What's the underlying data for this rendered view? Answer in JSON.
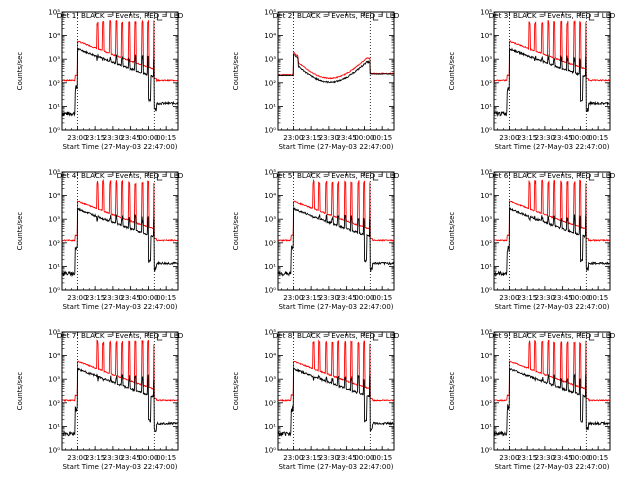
{
  "figure": {
    "colors": {
      "events": "#000000",
      "lld": "#ff0000",
      "axis": "#000000",
      "background": "#ffffff"
    },
    "ylabel": "Counts/sec",
    "xlabel": "Start Time (27-May-03 22:47:00)"
  },
  "chart_data": [
    {
      "type": "line",
      "title": "Det 1: BLACK = Events, RED = LLD",
      "ylabel": "Counts/sec",
      "xlabel": "Start Time (27-May-03 22:47:00)",
      "yscale": "log",
      "ylim": [
        1,
        100000
      ],
      "yticks": [
        "10⁰",
        "10¹",
        "10²",
        "10³",
        "10⁴",
        "10⁵"
      ],
      "xticks": [
        "23:00",
        "23:15",
        "23:30",
        "23:45",
        "00:00",
        "00:15"
      ],
      "xlim": [
        "22:47",
        "00:25"
      ],
      "markers": [
        "23:00",
        "00:05"
      ],
      "profile": "burst",
      "series": [
        {
          "name": "BLACK = Events",
          "color": "#000000"
        },
        {
          "name": "RED = LLD",
          "color": "#ff0000"
        }
      ]
    },
    {
      "type": "line",
      "title": "Det 2: BLACK = Events, RED = LLD",
      "ylabel": "Counts/sec",
      "xlabel": "Start Time (27-May-03 22:47:00)",
      "yscale": "log",
      "ylim": [
        1,
        100000
      ],
      "yticks": [
        "10⁰",
        "10¹",
        "10²",
        "10³",
        "10⁴",
        "10⁵"
      ],
      "xticks": [
        "23:00",
        "23:15",
        "23:30",
        "23:45",
        "00:00",
        "00:15"
      ],
      "xlim": [
        "22:47",
        "00:25"
      ],
      "markers": [
        "23:00",
        "00:05"
      ],
      "profile": "flat",
      "series": [
        {
          "name": "BLACK = Events",
          "color": "#000000"
        },
        {
          "name": "RED = LLD",
          "color": "#ff0000"
        }
      ]
    },
    {
      "type": "line",
      "title": "Det 3: BLACK = Events, RED = LLD",
      "ylabel": "Counts/sec",
      "xlabel": "Start Time (27-May-03 22:47:00)",
      "yscale": "log",
      "ylim": [
        1,
        100000
      ],
      "yticks": [
        "10⁰",
        "10¹",
        "10²",
        "10³",
        "10⁴",
        "10⁵"
      ],
      "xticks": [
        "23:00",
        "23:15",
        "23:30",
        "23:45",
        "00:00",
        "00:15"
      ],
      "xlim": [
        "22:47",
        "00:25"
      ],
      "markers": [
        "23:00",
        "00:05"
      ],
      "profile": "burst",
      "series": [
        {
          "name": "BLACK = Events",
          "color": "#000000"
        },
        {
          "name": "RED = LLD",
          "color": "#ff0000"
        }
      ]
    },
    {
      "type": "line",
      "title": "Det 4: BLACK = Events, RED = LLD",
      "ylabel": "Counts/sec",
      "xlabel": "Start Time (27-May-03 22:47:00)",
      "yscale": "log",
      "ylim": [
        1,
        100000
      ],
      "yticks": [
        "10⁰",
        "10¹",
        "10²",
        "10³",
        "10⁴",
        "10⁵"
      ],
      "xticks": [
        "23:00",
        "23:15",
        "23:30",
        "23:45",
        "00:00",
        "00:15"
      ],
      "xlim": [
        "22:47",
        "00:25"
      ],
      "markers": [
        "23:00",
        "00:05"
      ],
      "profile": "burst",
      "series": [
        {
          "name": "BLACK = Events",
          "color": "#000000"
        },
        {
          "name": "RED = LLD",
          "color": "#ff0000"
        }
      ]
    },
    {
      "type": "line",
      "title": "Det 5: BLACK = Events, RED = LLD",
      "ylabel": "Counts/sec",
      "xlabel": "Start Time (27-May-03 22:47:00)",
      "yscale": "log",
      "ylim": [
        1,
        100000
      ],
      "yticks": [
        "10⁰",
        "10¹",
        "10²",
        "10³",
        "10⁴",
        "10⁵"
      ],
      "xticks": [
        "23:00",
        "23:15",
        "23:30",
        "23:45",
        "00:00",
        "00:15"
      ],
      "xlim": [
        "22:47",
        "00:25"
      ],
      "markers": [
        "23:00",
        "00:05"
      ],
      "profile": "burst",
      "series": [
        {
          "name": "BLACK = Events",
          "color": "#000000"
        },
        {
          "name": "RED = LLD",
          "color": "#ff0000"
        }
      ]
    },
    {
      "type": "line",
      "title": "Det 6: BLACK = Events, RED = LLD",
      "ylabel": "Counts/sec",
      "xlabel": "Start Time (27-May-03 22:47:00)",
      "yscale": "log",
      "ylim": [
        1,
        100000
      ],
      "yticks": [
        "10⁰",
        "10¹",
        "10²",
        "10³",
        "10⁴",
        "10⁵"
      ],
      "xticks": [
        "23:00",
        "23:15",
        "23:30",
        "23:45",
        "00:00",
        "00:15"
      ],
      "xlim": [
        "22:47",
        "00:25"
      ],
      "markers": [
        "23:00",
        "00:05"
      ],
      "profile": "burst",
      "series": [
        {
          "name": "BLACK = Events",
          "color": "#000000"
        },
        {
          "name": "RED = LLD",
          "color": "#ff0000"
        }
      ]
    },
    {
      "type": "line",
      "title": "Det 7: BLACK = Events, RED = LLD",
      "ylabel": "Counts/sec",
      "xlabel": "Start Time (27-May-03 22:47:00)",
      "yscale": "log",
      "ylim": [
        1,
        100000
      ],
      "yticks": [
        "10⁰",
        "10¹",
        "10²",
        "10³",
        "10⁴",
        "10⁵"
      ],
      "xticks": [
        "23:00",
        "23:15",
        "23:30",
        "23:45",
        "00:00",
        "00:15"
      ],
      "xlim": [
        "22:47",
        "00:25"
      ],
      "markers": [
        "23:00",
        "00:05"
      ],
      "profile": "burst",
      "series": [
        {
          "name": "BLACK = Events",
          "color": "#000000"
        },
        {
          "name": "RED = LLD",
          "color": "#ff0000"
        }
      ]
    },
    {
      "type": "line",
      "title": "Det 8: BLACK = Events, RED = LLD",
      "ylabel": "Counts/sec",
      "xlabel": "Start Time (27-May-03 22:47:00)",
      "yscale": "log",
      "ylim": [
        1,
        100000
      ],
      "yticks": [
        "10⁰",
        "10¹",
        "10²",
        "10³",
        "10⁴",
        "10⁵"
      ],
      "xticks": [
        "23:00",
        "23:15",
        "23:30",
        "23:45",
        "00:00",
        "00:15"
      ],
      "xlim": [
        "22:47",
        "00:25"
      ],
      "markers": [
        "23:00",
        "00:05"
      ],
      "profile": "burst",
      "series": [
        {
          "name": "BLACK = Events",
          "color": "#000000"
        },
        {
          "name": "RED = LLD",
          "color": "#ff0000"
        }
      ]
    },
    {
      "type": "line",
      "title": "Det 9: BLACK = Events, RED = LLD",
      "ylabel": "Counts/sec",
      "xlabel": "Start Time (27-May-03 22:47:00)",
      "yscale": "log",
      "ylim": [
        1,
        100000
      ],
      "yticks": [
        "10⁰",
        "10¹",
        "10²",
        "10³",
        "10⁴",
        "10⁵"
      ],
      "xticks": [
        "23:00",
        "23:15",
        "23:30",
        "23:45",
        "00:00",
        "00:15"
      ],
      "xlim": [
        "22:47",
        "00:25"
      ],
      "markers": [
        "23:00",
        "00:05"
      ],
      "profile": "burst",
      "series": [
        {
          "name": "BLACK = Events",
          "color": "#000000"
        },
        {
          "name": "RED = LLD",
          "color": "#ff0000"
        }
      ]
    }
  ]
}
